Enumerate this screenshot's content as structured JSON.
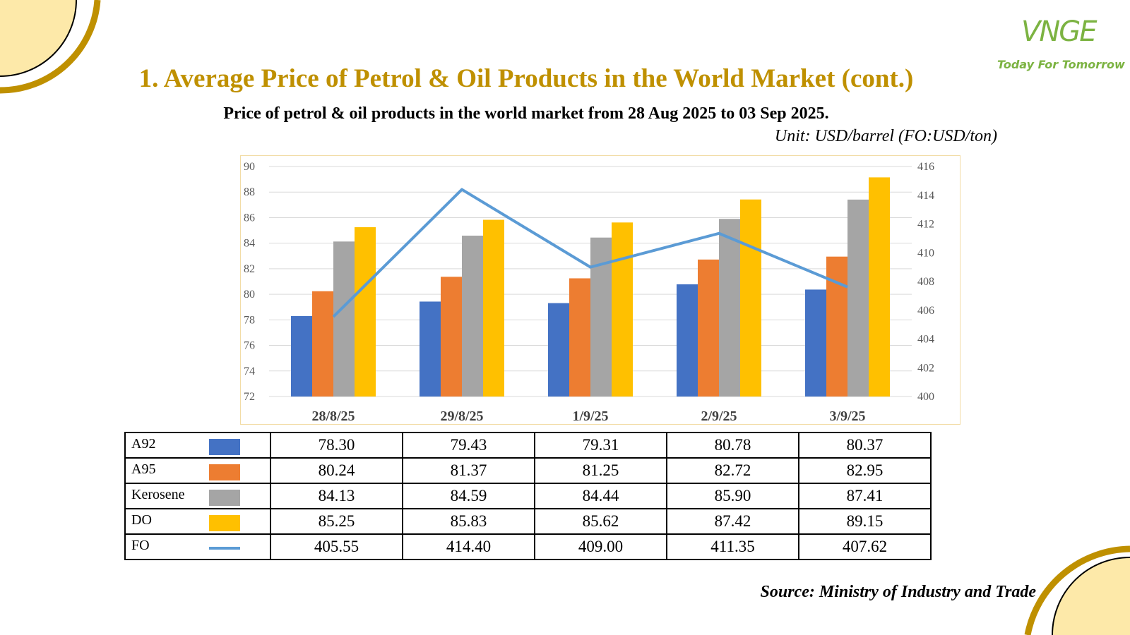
{
  "header": {
    "title": "1. Average Price of Petrol & Oil Products in the World Market (cont.)",
    "subtitle": "Price of petrol & oil products in the world market from 28 Aug 2025 to 03 Sep 2025.",
    "unit": "Unit: USD/barrel (FO:USD/ton)"
  },
  "logo": {
    "mark": "VNGE",
    "tagline": "Today For Tomorrow"
  },
  "colors": {
    "accent": "#bf9000",
    "deco_fill": "#fde9a9",
    "logo_green": "#7cb342"
  },
  "chart_data": {
    "type": "bar",
    "categories": [
      "28/8/25",
      "29/8/25",
      "1/9/25",
      "2/9/25",
      "3/9/25"
    ],
    "series": [
      {
        "name": "A92",
        "type": "bar",
        "axis": "left",
        "color": "#4472c4",
        "values": [
          78.3,
          79.43,
          79.31,
          80.78,
          80.37
        ]
      },
      {
        "name": "A95",
        "type": "bar",
        "axis": "left",
        "color": "#ed7d31",
        "values": [
          80.24,
          81.37,
          81.25,
          82.72,
          82.95
        ]
      },
      {
        "name": "Kerosene",
        "type": "bar",
        "axis": "left",
        "color": "#a5a5a5",
        "values": [
          84.13,
          84.59,
          84.44,
          85.9,
          87.41
        ]
      },
      {
        "name": "DO",
        "type": "bar",
        "axis": "left",
        "color": "#ffc000",
        "values": [
          85.25,
          85.83,
          85.62,
          87.42,
          89.15
        ]
      },
      {
        "name": "FO",
        "type": "line",
        "axis": "right",
        "color": "#5b9bd5",
        "values": [
          405.55,
          414.4,
          409.0,
          411.35,
          407.62
        ]
      }
    ],
    "ylim_left": [
      72,
      90
    ],
    "yticks_left": [
      "72",
      "74",
      "76",
      "78",
      "80",
      "82",
      "84",
      "86",
      "88",
      "90"
    ],
    "ylim_right": [
      400,
      416
    ],
    "yticks_right": [
      "400",
      "402",
      "404",
      "406",
      "408",
      "410",
      "412",
      "414",
      "416"
    ],
    "grid": true
  },
  "table": {
    "rows": [
      {
        "label": "A92",
        "values": [
          "78.30",
          "79.43",
          "79.31",
          "80.78",
          "80.37"
        ]
      },
      {
        "label": "A95",
        "values": [
          "80.24",
          "81.37",
          "81.25",
          "82.72",
          "82.95"
        ]
      },
      {
        "label": "Kerosene",
        "values": [
          "84.13",
          "84.59",
          "84.44",
          "85.90",
          "87.41"
        ]
      },
      {
        "label": "DO",
        "values": [
          "85.25",
          "85.83",
          "85.62",
          "87.42",
          "89.15"
        ]
      },
      {
        "label": "FO",
        "values": [
          "405.55",
          "414.40",
          "409.00",
          "411.35",
          "407.62"
        ]
      }
    ]
  },
  "footer": {
    "source": "Source: Ministry of Industry and Trade"
  }
}
